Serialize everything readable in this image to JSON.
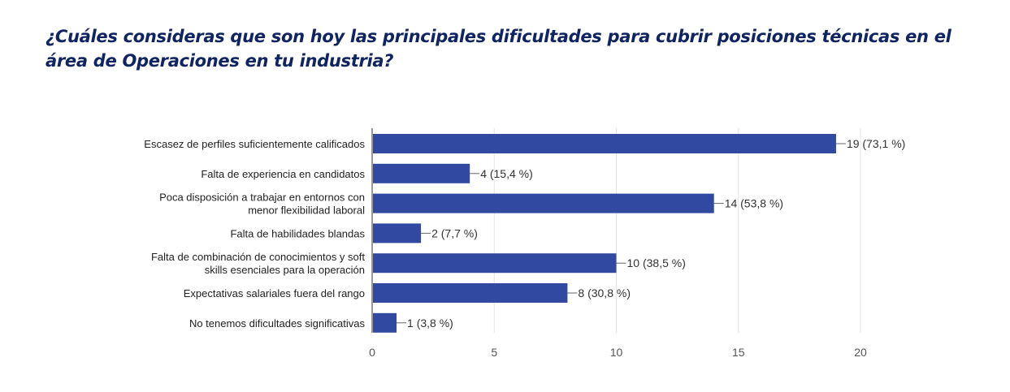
{
  "chart_data": {
    "type": "bar",
    "orientation": "horizontal",
    "title": "¿Cuáles consideras que son hoy las principales dificultades para cubrir posiciones técnicas en el área de Operaciones en tu industria?",
    "categories": [
      [
        "Escasez de perfiles suficientemente calificados"
      ],
      [
        "Falta de experiencia en candidatos"
      ],
      [
        "Poca disposición a trabajar en entornos con",
        "menor flexibilidad laboral"
      ],
      [
        "Falta de habilidades blandas"
      ],
      [
        "Falta de combinación de conocimientos y soft",
        "skills esenciales para la operación"
      ],
      [
        "Expectativas salariales fuera del rango"
      ],
      [
        "No tenemos dificultades significativas"
      ]
    ],
    "values": [
      19,
      4,
      14,
      2,
      10,
      8,
      1
    ],
    "data_labels": [
      "19 (73,1 %)",
      "4 (15,4 %)",
      "14 (53,8 %)",
      "2 (7,7 %)",
      "10 (38,5 %)",
      "8 (30,8 %)",
      "1 (3,8 %)"
    ],
    "xlim": [
      0,
      20
    ],
    "xticks": [
      0,
      5,
      10,
      15,
      20
    ],
    "grid": true,
    "bar_color": "#3149a0",
    "title_color": "#0f2461"
  }
}
